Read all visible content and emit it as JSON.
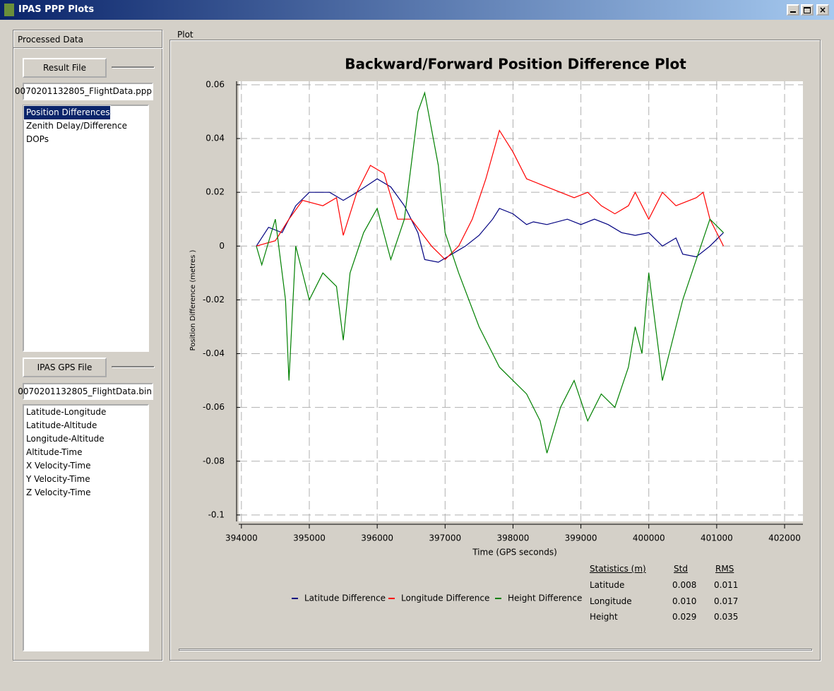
{
  "window": {
    "title": "IPAS PPP Plots"
  },
  "left_panel": {
    "title": "Processed Data",
    "result_button": "Result File",
    "result_file": "0070201132805_FlightData.ppp",
    "result_list": [
      "Position Differences",
      "Zenith Delay/Difference",
      "DOPs"
    ],
    "gps_button": "IPAS GPS File",
    "gps_file": "0070201132805_FlightData.bin",
    "gps_list": [
      "Latitude-Longitude",
      "Latitude-Altitude",
      "Longitude-Altitude",
      "Altitude-Time",
      "X Velocity-Time",
      "Y Velocity-Time",
      "Z Velocity-Time"
    ]
  },
  "plot_group": {
    "title": "Plot"
  },
  "statistics": {
    "header": [
      "Statistics (m)",
      "Std",
      "RMS"
    ],
    "rows": [
      [
        "Latitude",
        "0.008",
        "0.011"
      ],
      [
        "Longitude",
        "0.010",
        "0.017"
      ],
      [
        "Height",
        "0.029",
        "0.035"
      ]
    ]
  },
  "chart_data": {
    "type": "line",
    "title": "Backward/Forward Position Difference Plot",
    "x_label": "Time (GPS seconds)",
    "y_label": "Position  Difference   (metres )",
    "xlim": [
      393960,
      402270
    ],
    "ylim": [
      -0.1024,
      0.0613
    ],
    "xticks": [
      394000,
      395000,
      396000,
      397000,
      398000,
      399000,
      400000,
      401000,
      402000
    ],
    "yticks": [
      0.06,
      0.04,
      0.02,
      0,
      -0.02,
      -0.04,
      -0.06,
      -0.08,
      -0.1
    ],
    "grid": true,
    "series": [
      {
        "name": "Latitude Difference",
        "color": "#000080",
        "x": [
          394220,
          394400,
          394600,
          394800,
          395000,
          395300,
          395500,
          395700,
          396000,
          396200,
          396400,
          396600,
          396700,
          396900,
          397100,
          397300,
          397500,
          397700,
          397800,
          398000,
          398200,
          398300,
          398500,
          398800,
          399000,
          399200,
          399400,
          399600,
          399800,
          400000,
          400200,
          400400,
          400500,
          400700,
          400900,
          401100
        ],
        "values": [
          0,
          0.007,
          0.005,
          0.015,
          0.02,
          0.02,
          0.017,
          0.02,
          0.025,
          0.022,
          0.015,
          0.005,
          -0.005,
          -0.006,
          -0.003,
          0,
          0.004,
          0.01,
          0.014,
          0.012,
          0.008,
          0.009,
          0.008,
          0.01,
          0.008,
          0.01,
          0.008,
          0.005,
          0.004,
          0.005,
          0,
          0.003,
          -0.003,
          -0.004,
          0,
          0.005
        ]
      },
      {
        "name": "Longitude Difference",
        "color": "#ff0000",
        "x": [
          394220,
          394500,
          394700,
          394900,
          395200,
          395400,
          395500,
          395700,
          395900,
          396100,
          396300,
          396500,
          396800,
          397000,
          397200,
          397400,
          397600,
          397800,
          398000,
          398200,
          398400,
          398700,
          398900,
          399100,
          399300,
          399500,
          399700,
          399800,
          400000,
          400200,
          400400,
          400700,
          400800,
          400900,
          401100
        ],
        "values": [
          0,
          0.002,
          0.01,
          0.017,
          0.015,
          0.018,
          0.004,
          0.02,
          0.03,
          0.027,
          0.01,
          0.01,
          0,
          -0.005,
          0,
          0.01,
          0.025,
          0.043,
          0.035,
          0.025,
          0.023,
          0.02,
          0.018,
          0.02,
          0.015,
          0.012,
          0.015,
          0.02,
          0.01,
          0.02,
          0.015,
          0.018,
          0.02,
          0.01,
          0
        ]
      },
      {
        "name": "Height Difference",
        "color": "#008000",
        "x": [
          394220,
          394300,
          394500,
          394650,
          394700,
          394800,
          395000,
          395200,
          395400,
          395500,
          395600,
          395800,
          396000,
          396200,
          396400,
          396600,
          396700,
          396900,
          397000,
          397200,
          397500,
          397800,
          398000,
          398200,
          398400,
          398500,
          398700,
          398900,
          399100,
          399300,
          399500,
          399700,
          399800,
          399900,
          400000,
          400200,
          400300,
          400500,
          400700,
          400900,
          401100
        ],
        "values": [
          0,
          -0.007,
          0.01,
          -0.02,
          -0.05,
          0,
          -0.02,
          -0.01,
          -0.015,
          -0.035,
          -0.01,
          0.005,
          0.014,
          -0.005,
          0.01,
          0.05,
          0.057,
          0.03,
          0.005,
          -0.01,
          -0.03,
          -0.045,
          -0.05,
          -0.055,
          -0.065,
          -0.077,
          -0.06,
          -0.05,
          -0.065,
          -0.055,
          -0.06,
          -0.045,
          -0.03,
          -0.04,
          -0.01,
          -0.05,
          -0.04,
          -0.02,
          -0.005,
          0.01,
          0.005
        ]
      }
    ]
  }
}
